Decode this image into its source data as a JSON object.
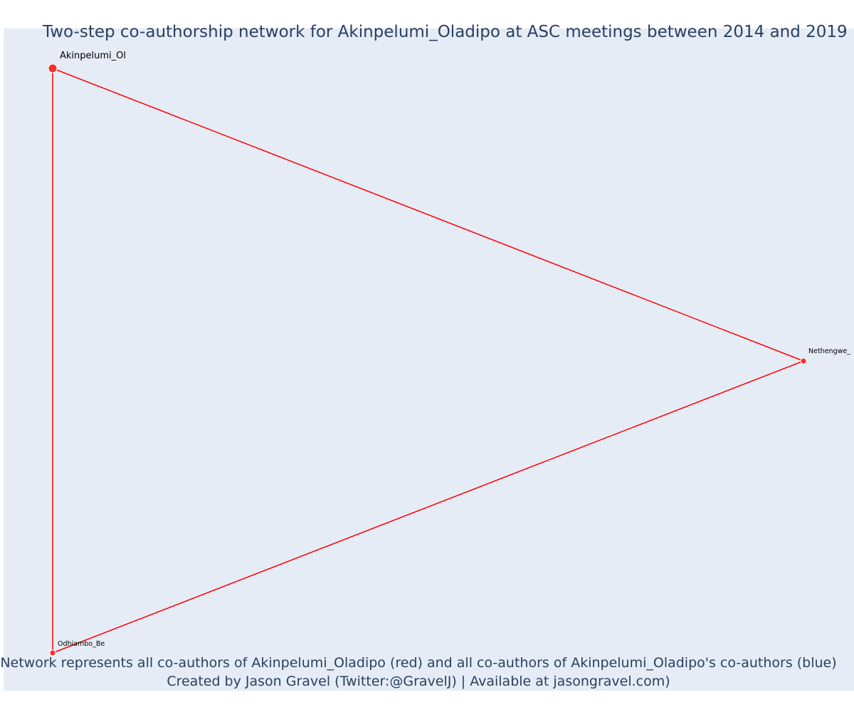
{
  "title": "Two-step co-authorship network for Akinpelumi_Oladipo at ASC meetings between 2014 and 2019",
  "caption": {
    "line1": "Network represents all co-authors of Akinpelumi_Oladipo (red) and all co-authors of Akinpelumi_Oladipo's co-authors (blue)",
    "line2": "Created by Jason Gravel (Twitter:@GravelJ) | Available at jasongravel.com)"
  },
  "colors": {
    "background": "#e5ecf6",
    "edge": "#ff0000",
    "node": "#ff2a2a",
    "node_outline": "#ffffff",
    "text": "#2a3f5f"
  },
  "network": {
    "nodes": [
      {
        "id": "akinpelumi",
        "label": "Akinpelumi_Ol",
        "role": "focal",
        "color": "red"
      },
      {
        "id": "nethengwe",
        "label": "Nethengwe_",
        "role": "co-author",
        "color": "red"
      },
      {
        "id": "odhiambo",
        "label": "Odhiambo_Be",
        "role": "co-author",
        "color": "red"
      }
    ],
    "edges": [
      {
        "source": "akinpelumi",
        "target": "nethengwe"
      },
      {
        "source": "nethengwe",
        "target": "odhiambo"
      },
      {
        "source": "akinpelumi",
        "target": "odhiambo"
      }
    ]
  }
}
